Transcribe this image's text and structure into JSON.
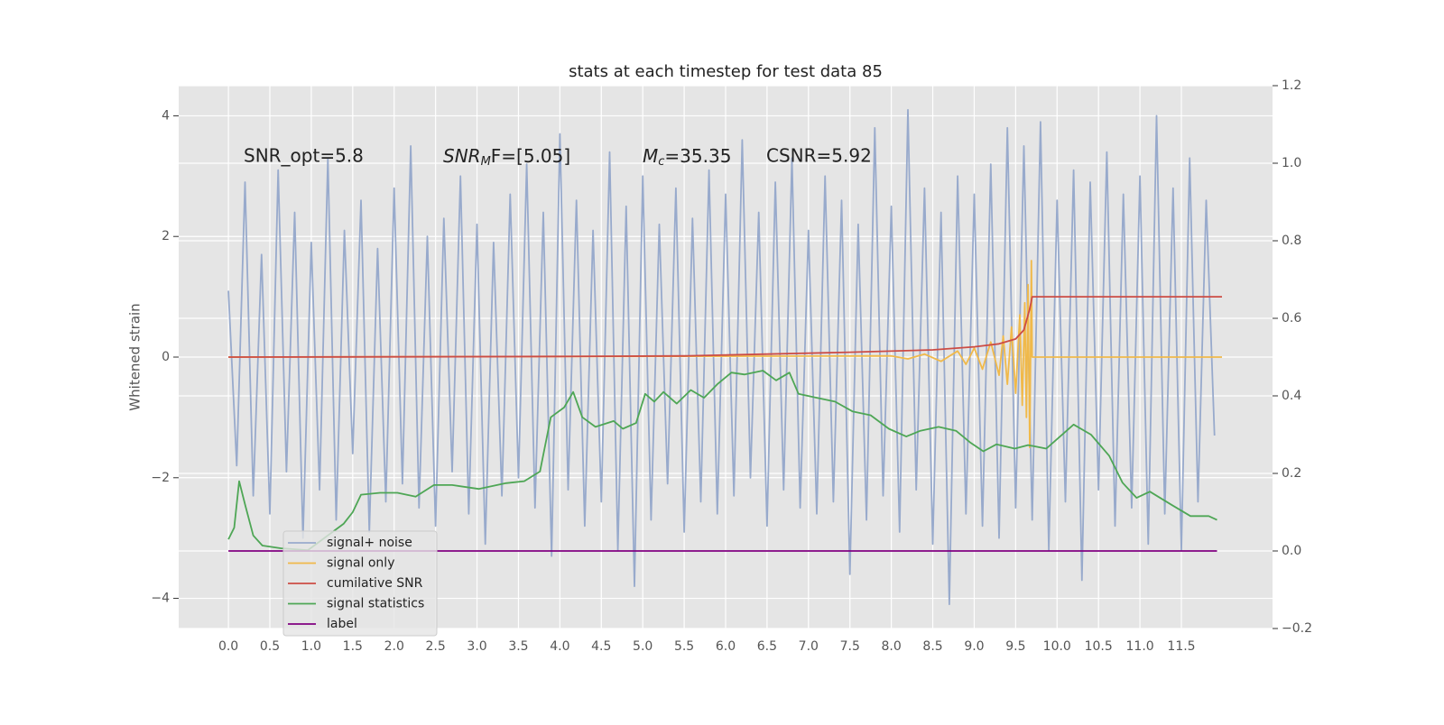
{
  "chart_data": {
    "type": "line",
    "title": "stats at each timestep for test data 85",
    "ylabel": "Whitened strain",
    "annotations": [
      {
        "text": "SNR_opt=5.8"
      },
      {
        "text": "SNR",
        "sub": "M",
        "tail": "F=[5.05]"
      },
      {
        "text": "M",
        "sub": "c",
        "tail": "=35.35"
      },
      {
        "text": "CSNR=5.92"
      }
    ],
    "xlim": [
      -0.6,
      12.6
    ],
    "ylim": [
      -4.5,
      4.5
    ],
    "y2lim": [
      -0.2,
      1.2
    ],
    "grid": true,
    "legend": "lower left",
    "xticks": [
      {
        "value": 0,
        "label": "0.0"
      },
      {
        "value": 0.5,
        "label": "0.5"
      },
      {
        "value": 1,
        "label": "1.0"
      },
      {
        "value": 1.5,
        "label": "1.5"
      },
      {
        "value": 2,
        "label": "2.0"
      },
      {
        "value": 2.5,
        "label": "2.5"
      },
      {
        "value": 3,
        "label": "3.0"
      },
      {
        "value": 3.5,
        "label": "3.5"
      },
      {
        "value": 4,
        "label": "4.0"
      },
      {
        "value": 4.5,
        "label": "4.5"
      },
      {
        "value": 5,
        "label": "5.0"
      },
      {
        "value": 5.5,
        "label": "5.5"
      },
      {
        "value": 6,
        "label": "6.0"
      },
      {
        "value": 6.5,
        "label": "6.5"
      },
      {
        "value": 7,
        "label": "7.0"
      },
      {
        "value": 7.5,
        "label": "7.5"
      },
      {
        "value": 8,
        "label": "8.0"
      },
      {
        "value": 8.5,
        "label": "8.5"
      },
      {
        "value": 9,
        "label": "9.0"
      },
      {
        "value": 9.5,
        "label": "9.5"
      },
      {
        "value": 10,
        "label": "10.0"
      },
      {
        "value": 10.5,
        "label": "10.5"
      },
      {
        "value": 11,
        "label": "11.0"
      },
      {
        "value": 11.5,
        "label": "11.5"
      }
    ],
    "yticks": [
      {
        "value": -4,
        "label": "−4"
      },
      {
        "value": -2,
        "label": "−2"
      },
      0,
      2,
      4
    ],
    "y2ticks": [
      {
        "value": -0.2,
        "label": "−0.2"
      },
      {
        "value": 0,
        "label": "0.0"
      },
      0.2,
      0.4,
      0.6,
      0.8,
      {
        "value": 1,
        "label": "1.0"
      },
      1.2
    ],
    "series": [
      {
        "name": "signal+ noise",
        "color": "#98aacc",
        "axis": "y",
        "x": [
          0,
          0.1,
          0.2,
          0.3,
          0.4,
          0.5,
          0.6,
          0.7,
          0.8,
          0.9,
          1,
          1.1,
          1.2,
          1.3,
          1.4,
          1.5,
          1.6,
          1.7,
          1.8,
          1.9,
          2,
          2.1,
          2.2,
          2.3,
          2.4,
          2.5,
          2.6,
          2.7,
          2.8,
          2.9,
          3,
          3.1,
          3.2,
          3.3,
          3.4,
          3.5,
          3.6,
          3.7,
          3.8,
          3.9,
          4,
          4.1,
          4.2,
          4.3,
          4.4,
          4.5,
          4.6,
          4.7,
          4.8,
          4.9,
          5,
          5.1,
          5.2,
          5.3,
          5.4,
          5.5,
          5.6,
          5.7,
          5.8,
          5.9,
          6,
          6.1,
          6.2,
          6.3,
          6.4,
          6.5,
          6.6,
          6.7,
          6.8,
          6.9,
          7,
          7.1,
          7.2,
          7.3,
          7.4,
          7.5,
          7.6,
          7.7,
          7.8,
          7.9,
          8,
          8.1,
          8.2,
          8.3,
          8.4,
          8.5,
          8.6,
          8.7,
          8.8,
          8.9,
          9,
          9.1,
          9.2,
          9.3,
          9.4,
          9.5,
          9.6,
          9.7,
          9.8,
          9.9,
          10,
          10.1,
          10.2,
          10.3,
          10.4,
          10.5,
          10.6,
          10.7,
          10.8,
          10.9,
          11,
          11.1,
          11.2,
          11.3,
          11.4,
          11.5,
          11.6,
          11.7,
          11.8,
          11.9
        ],
        "values": [
          1.1,
          -1.8,
          2.9,
          -2.3,
          1.7,
          -2.6,
          3.1,
          -1.9,
          2.4,
          -3.0,
          1.9,
          -2.2,
          3.3,
          -2.7,
          2.1,
          -1.6,
          2.6,
          -2.9,
          1.8,
          -2.4,
          2.8,
          -2.1,
          3.5,
          -2.5,
          2.0,
          -2.8,
          2.3,
          -1.9,
          3.0,
          -2.6,
          2.2,
          -3.1,
          1.9,
          -2.3,
          2.7,
          -2.0,
          3.2,
          -2.5,
          2.4,
          -3.3,
          3.7,
          -2.2,
          2.6,
          -2.8,
          2.1,
          -2.4,
          3.4,
          -3.2,
          2.5,
          -3.8,
          3.0,
          -2.7,
          2.2,
          -2.1,
          2.8,
          -2.9,
          2.3,
          -2.4,
          3.1,
          -2.6,
          2.7,
          -2.3,
          3.6,
          -2.0,
          2.4,
          -2.8,
          2.9,
          -2.2,
          3.3,
          -2.5,
          2.1,
          -2.6,
          3.0,
          -2.4,
          2.6,
          -3.6,
          2.2,
          -2.7,
          3.8,
          -2.3,
          2.5,
          -2.9,
          4.1,
          -2.2,
          2.8,
          -3.1,
          2.4,
          -4.1,
          3.0,
          -2.6,
          2.7,
          -2.8,
          3.2,
          -3.0,
          3.8,
          -2.5,
          3.5,
          -2.7,
          3.9,
          -3.2,
          2.6,
          -2.4,
          3.1,
          -3.7,
          2.9,
          -2.2,
          3.4,
          -2.8,
          2.7,
          -2.5,
          3.0,
          -3.1,
          4.0,
          -2.6,
          2.8,
          -3.2,
          3.3,
          -2.4,
          2.6,
          -1.3
        ]
      },
      {
        "name": "signal only",
        "color": "#f0b94a",
        "axis": "y",
        "x": [
          0,
          8.0,
          8.2,
          8.4,
          8.6,
          8.8,
          8.9,
          9.0,
          9.1,
          9.2,
          9.3,
          9.35,
          9.4,
          9.45,
          9.5,
          9.55,
          9.58,
          9.61,
          9.63,
          9.65,
          9.67,
          9.69,
          9.7,
          11.99
        ],
        "values": [
          0,
          0.02,
          -0.03,
          0.05,
          -0.07,
          0.1,
          -0.12,
          0.15,
          -0.2,
          0.25,
          -0.3,
          0.35,
          -0.45,
          0.5,
          -0.6,
          0.7,
          -0.8,
          0.9,
          -1.0,
          1.2,
          -1.5,
          1.6,
          0,
          0
        ]
      },
      {
        "name": "cumilative SNR",
        "color": "#cc4c45",
        "axis": "y",
        "x": [
          0,
          2,
          4,
          5.5,
          6.5,
          7.5,
          8.5,
          9.0,
          9.3,
          9.5,
          9.6,
          9.67,
          9.7,
          11.99
        ],
        "values": [
          0,
          0.005,
          0.01,
          0.02,
          0.05,
          0.08,
          0.12,
          0.17,
          0.22,
          0.3,
          0.45,
          0.8,
          1.0,
          1.0
        ]
      },
      {
        "name": "signal statistics",
        "color": "#4ea655",
        "axis": "y2",
        "x": [
          0,
          0.07,
          0.13,
          0.2,
          0.3,
          0.41,
          0.63,
          0.96,
          1.39,
          1.5,
          1.6,
          1.83,
          2.04,
          2.26,
          2.48,
          2.7,
          3.02,
          3.35,
          3.57,
          3.76,
          3.89,
          4.05,
          4.16,
          4.27,
          4.43,
          4.65,
          4.76,
          4.92,
          5.03,
          5.14,
          5.25,
          5.41,
          5.58,
          5.74,
          5.9,
          6.07,
          6.23,
          6.45,
          6.61,
          6.77,
          6.88,
          7.1,
          7.32,
          7.53,
          7.75,
          7.97,
          8.18,
          8.35,
          8.57,
          8.78,
          8.95,
          9.11,
          9.27,
          9.49,
          9.65,
          9.87,
          10.03,
          10.2,
          10.41,
          10.63,
          10.79,
          10.96,
          11.12,
          11.39,
          11.61,
          11.83,
          11.93
        ],
        "values": [
          0.03,
          0.06,
          0.18,
          0.12,
          0.04,
          0.014,
          0.007,
          0.002,
          0.07,
          0.1,
          0.145,
          0.15,
          0.15,
          0.14,
          0.17,
          0.17,
          0.16,
          0.175,
          0.18,
          0.205,
          0.345,
          0.37,
          0.41,
          0.345,
          0.32,
          0.335,
          0.315,
          0.33,
          0.405,
          0.385,
          0.41,
          0.38,
          0.415,
          0.395,
          0.43,
          0.46,
          0.455,
          0.465,
          0.44,
          0.46,
          0.405,
          0.395,
          0.385,
          0.36,
          0.35,
          0.315,
          0.295,
          0.31,
          0.32,
          0.31,
          0.28,
          0.257,
          0.275,
          0.264,
          0.273,
          0.264,
          0.294,
          0.326,
          0.3,
          0.245,
          0.176,
          0.137,
          0.153,
          0.118,
          0.09,
          0.09,
          0.08
        ]
      },
      {
        "name": "label",
        "color": "#800080",
        "axis": "y2",
        "x": [
          0,
          11.93
        ],
        "values": [
          0,
          0
        ]
      }
    ]
  }
}
